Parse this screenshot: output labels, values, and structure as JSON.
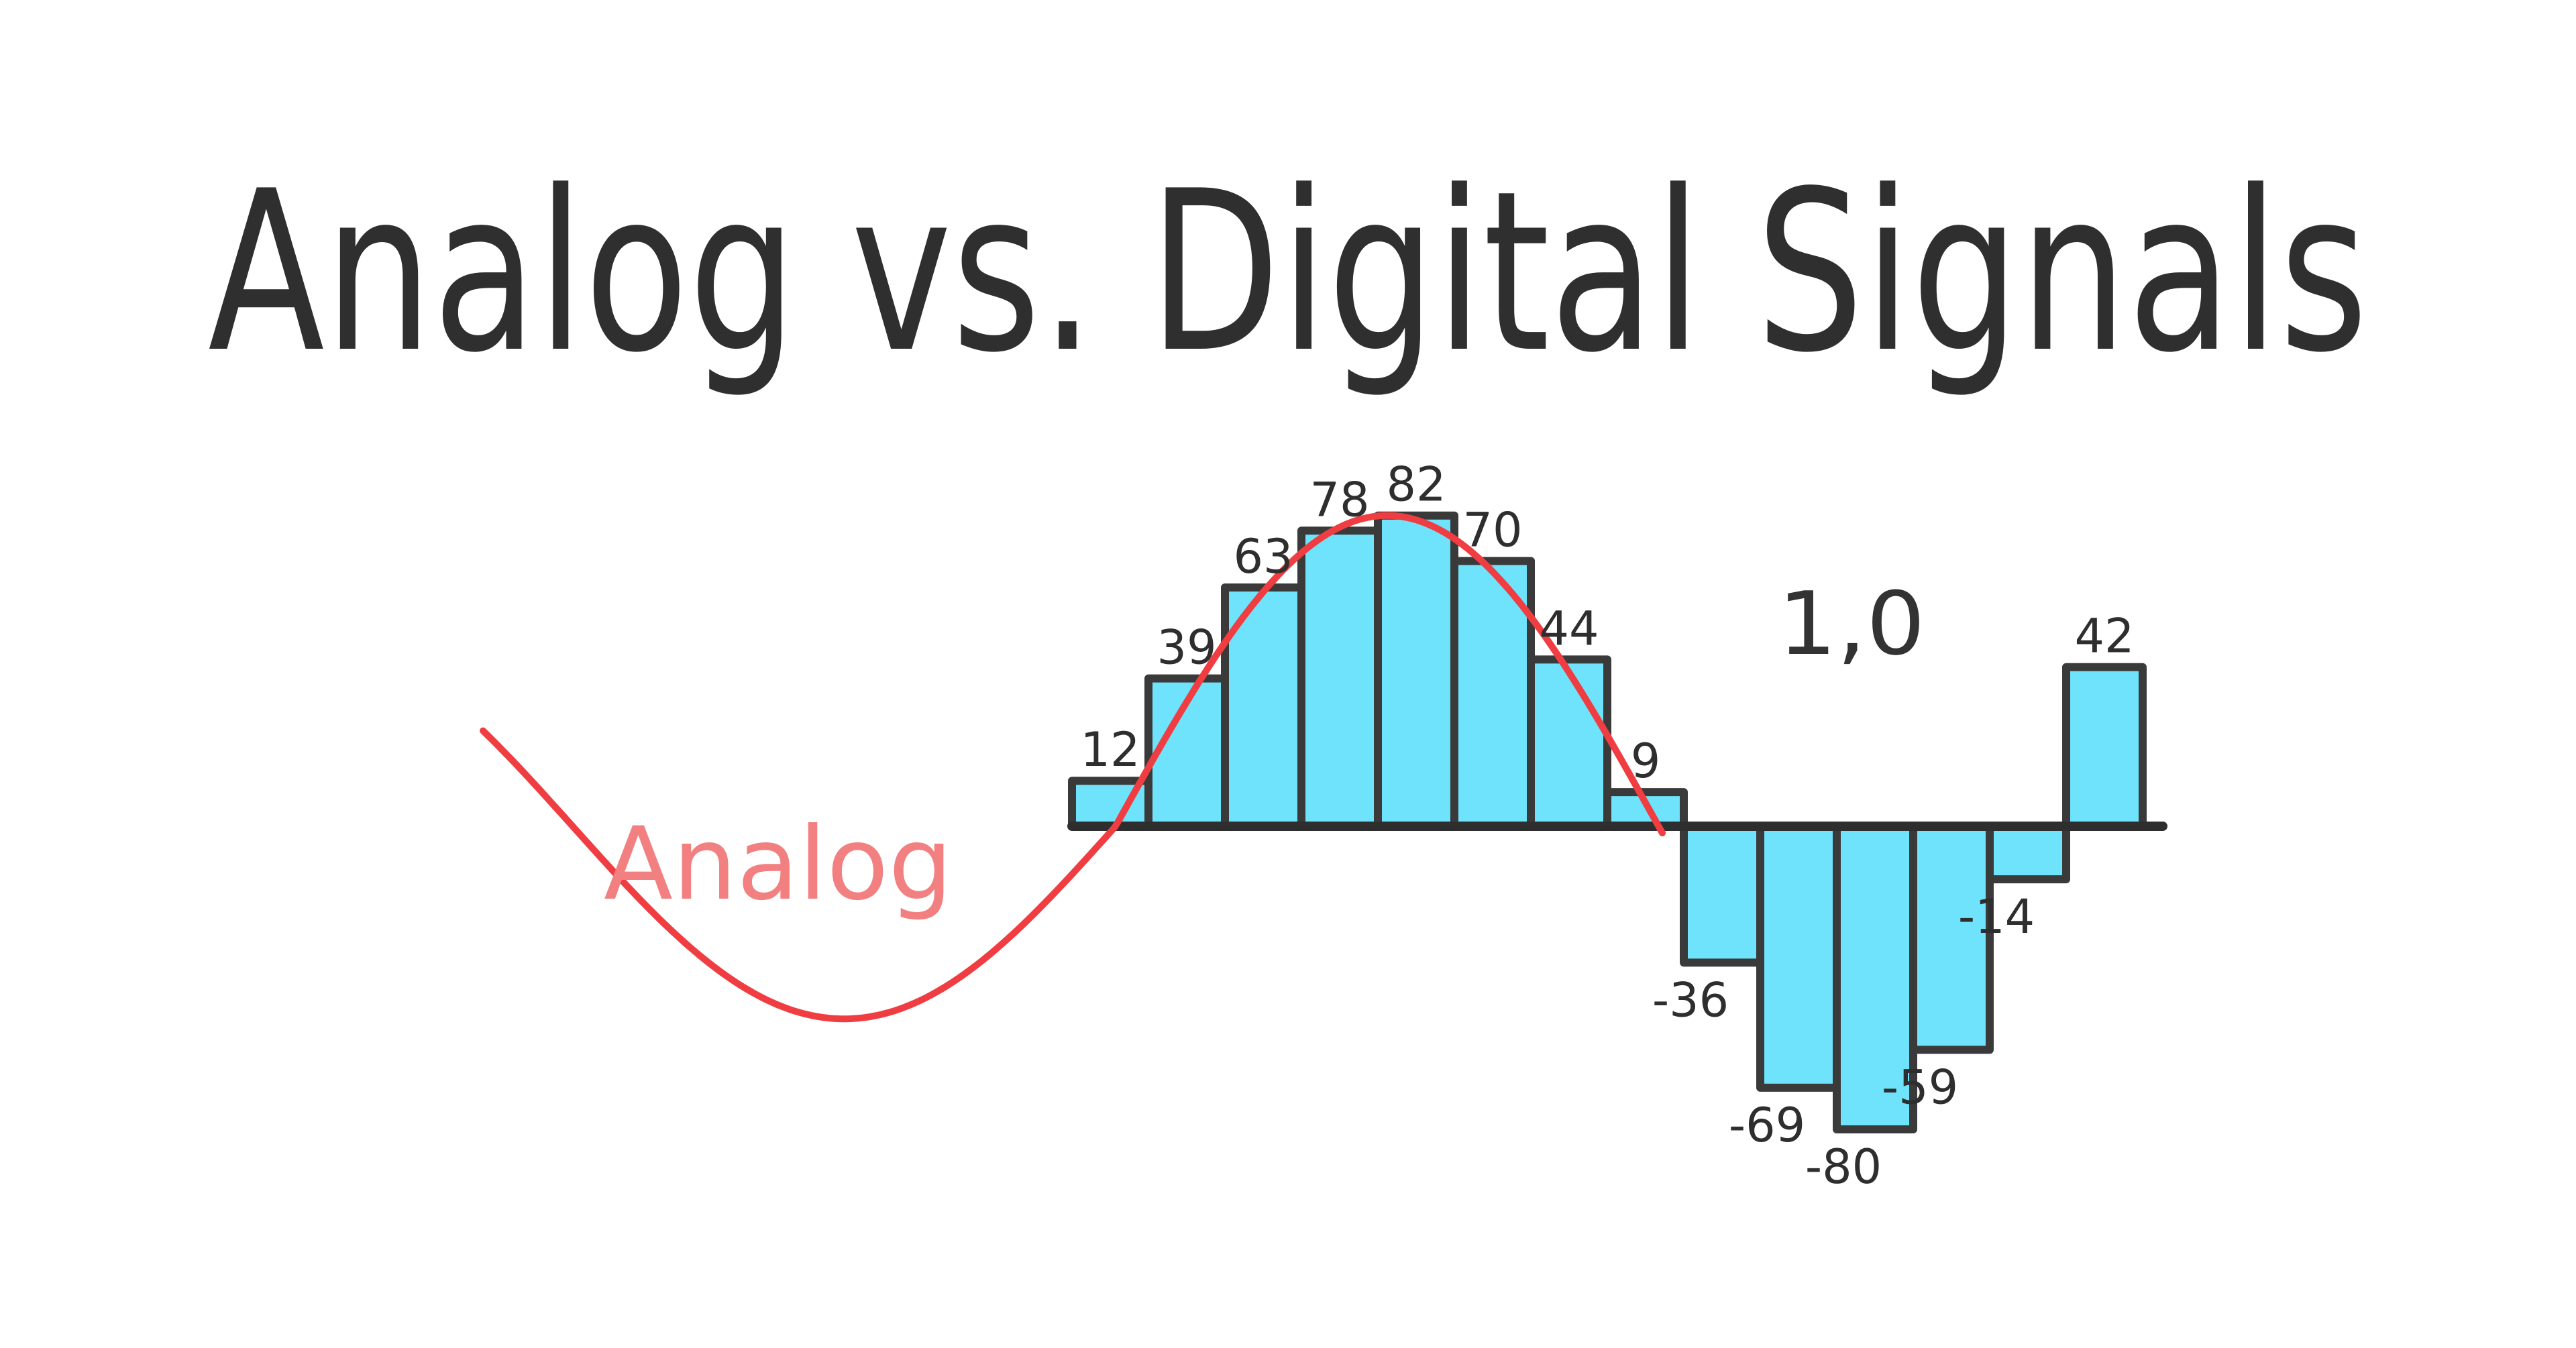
{
  "title": "Analog vs. Digital Signals",
  "analog_label": "Analog",
  "digital_label": "1,0",
  "colors": {
    "bar_fill": "#6ee3fb",
    "bar_stroke": "#3a3a3a",
    "analog_curve": "#ef3d42",
    "analog_label": "#f28080",
    "text": "#2f2f2f"
  },
  "chart_data": {
    "type": "bar",
    "values": [
      12,
      39,
      63,
      78,
      82,
      70,
      44,
      9,
      -36,
      -69,
      -80,
      -59,
      -14,
      42
    ],
    "value_labels": [
      "12",
      "39",
      "63",
      "78",
      "82",
      "70",
      "44",
      "9",
      "-36",
      "-69",
      "-80",
      "-59",
      "-14",
      "42"
    ],
    "baseline": 0
  }
}
